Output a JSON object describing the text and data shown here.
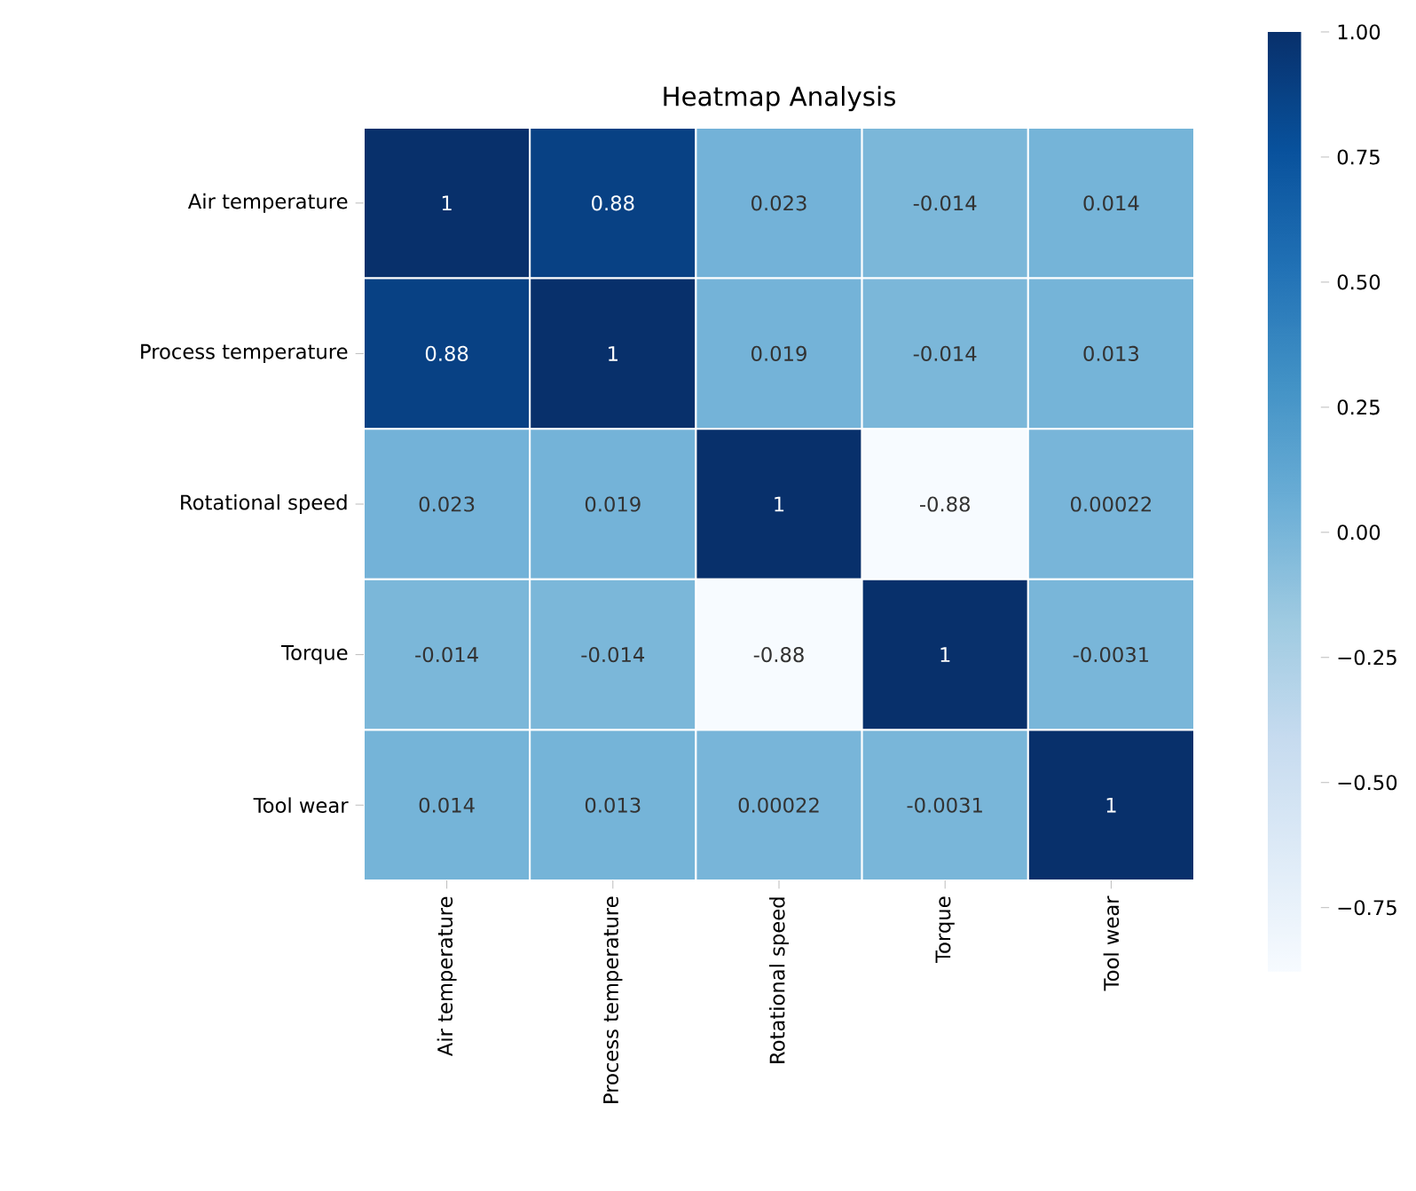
{
  "chart_data": {
    "type": "heatmap",
    "title": "Heatmap Analysis",
    "categories": [
      "Air temperature",
      "Process temperature",
      "Rotational speed",
      "Torque",
      "Tool wear"
    ],
    "y_categories": [
      "Air temperature",
      "Process temperature",
      "Rotational speed",
      "Torque",
      "Tool wear"
    ],
    "cells": [
      [
        1,
        0.88,
        0.023,
        -0.014,
        0.014
      ],
      [
        0.88,
        1,
        0.019,
        -0.014,
        0.013
      ],
      [
        0.023,
        0.019,
        1,
        -0.88,
        0.00022
      ],
      [
        -0.014,
        -0.014,
        -0.88,
        1,
        -0.0031
      ],
      [
        0.014,
        0.013,
        0.00022,
        -0.0031,
        1
      ]
    ],
    "data_labels": true,
    "clim": [
      -0.88,
      1.0
    ],
    "cticks": [
      {
        "value": -0.75,
        "label": "−0.75"
      },
      {
        "value": -0.5,
        "label": "−0.50"
      },
      {
        "value": -0.25,
        "label": "−0.25"
      },
      {
        "value": 0,
        "label": "0.00"
      },
      {
        "value": 0.25,
        "label": "0.25"
      },
      {
        "value": 0.5,
        "label": "0.50"
      },
      {
        "value": 0.75,
        "label": "0.75"
      },
      {
        "value": 1.0,
        "label": "1.00"
      }
    ]
  }
}
